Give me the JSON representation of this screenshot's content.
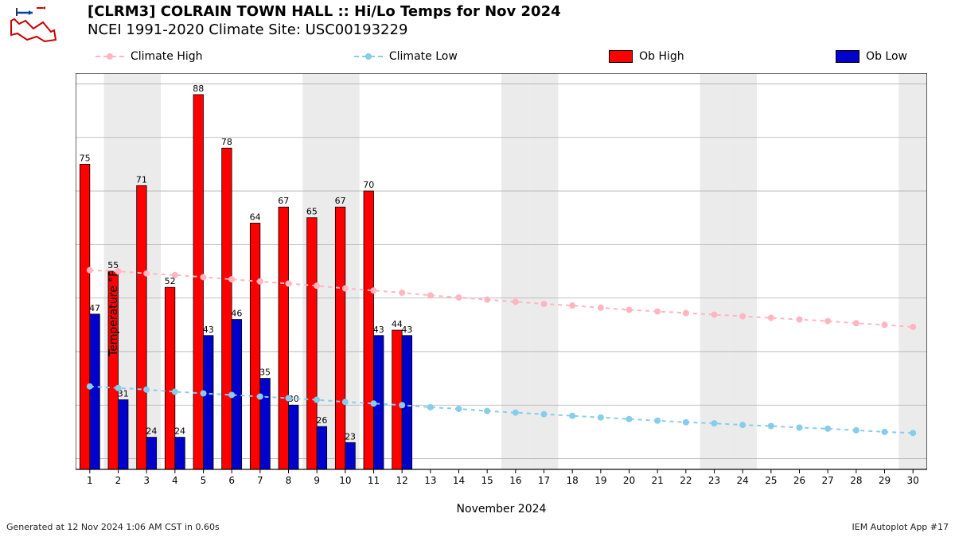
{
  "title1": "[CLRM3] COLRAIN TOWN HALL :: Hi/Lo Temps for Nov 2024",
  "title2": "NCEI 1991-2020 Climate Site: USC00193229",
  "legend": {
    "climate_high": "Climate High",
    "climate_low": "Climate Low",
    "ob_high": "Ob High",
    "ob_low": "Ob Low"
  },
  "ylabel": "Temperature °F",
  "xlabel": "November 2024",
  "footer_left": "Generated at 12 Nov 2024 1:06 AM CST in 0.60s",
  "footer_right": "IEM Autoplot App #17",
  "chart": {
    "type": "bar+line",
    "background_color": "#ffffff",
    "weekend_band_color": "#ebebeb",
    "grid_color": "#b0b0b0",
    "axis_color": "#000000",
    "tick_fontsize": 12,
    "barlabel_fontsize": 11,
    "days": [
      1,
      2,
      3,
      4,
      5,
      6,
      7,
      8,
      9,
      10,
      11,
      12,
      13,
      14,
      15,
      16,
      17,
      18,
      19,
      20,
      21,
      22,
      23,
      24,
      25,
      26,
      27,
      28,
      29,
      30
    ],
    "weekend_days": [
      2,
      3,
      9,
      10,
      16,
      17,
      23,
      24,
      30
    ],
    "ylim": [
      18,
      92
    ],
    "ytick_step": 10,
    "ytick_start": 20,
    "ob_high": {
      "color": "#ff0000",
      "edge": "#000000",
      "values": [
        75,
        55,
        71,
        52,
        88,
        78,
        64,
        67,
        65,
        67,
        70,
        44
      ],
      "bar_width": 0.35
    },
    "ob_low": {
      "color": "#0000cc",
      "edge": "#000000",
      "values": [
        47,
        31,
        24,
        24,
        43,
        46,
        35,
        30,
        26,
        23,
        43,
        43
      ],
      "bar_width": 0.35
    },
    "climate_high": {
      "color": "#ffb6c1",
      "marker_size": 4,
      "values": [
        55.2,
        55.0,
        54.6,
        54.3,
        53.9,
        53.5,
        53.1,
        52.7,
        52.3,
        51.8,
        51.4,
        51.0,
        50.5,
        50.1,
        49.7,
        49.3,
        48.9,
        48.6,
        48.2,
        47.8,
        47.5,
        47.2,
        46.9,
        46.6,
        46.3,
        46.0,
        45.7,
        45.3,
        45.0,
        44.6
      ]
    },
    "climate_low": {
      "color": "#87cdeb",
      "marker_size": 4,
      "values": [
        33.5,
        33.2,
        32.9,
        32.5,
        32.2,
        31.9,
        31.6,
        31.3,
        31.0,
        30.6,
        30.3,
        30.0,
        29.6,
        29.3,
        28.9,
        28.6,
        28.3,
        28.0,
        27.7,
        27.4,
        27.1,
        26.8,
        26.6,
        26.3,
        26.1,
        25.8,
        25.6,
        25.3,
        25.0,
        24.8
      ]
    }
  }
}
